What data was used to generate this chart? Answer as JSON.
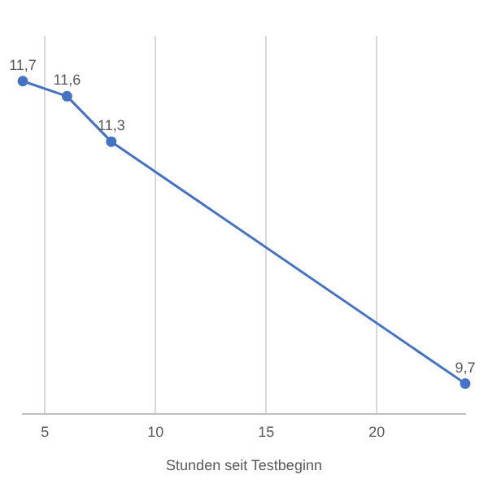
{
  "chart_data": {
    "type": "line",
    "xlabel": "Stunden seit Testbeginn",
    "x": [
      4,
      6,
      8,
      24
    ],
    "series": [
      {
        "color": "#4472c4",
        "values": [
          11.7,
          11.6,
          11.3,
          9.7
        ],
        "value_labels": [
          "11,7",
          "11,6",
          "11,3",
          "9,7"
        ]
      }
    ],
    "xlim": [
      4,
      24
    ],
    "xticks": [
      5,
      10,
      15,
      20
    ],
    "tick_labels": "x",
    "grid": "x",
    "legend": false,
    "marker": "circle",
    "line_style": "solid"
  }
}
